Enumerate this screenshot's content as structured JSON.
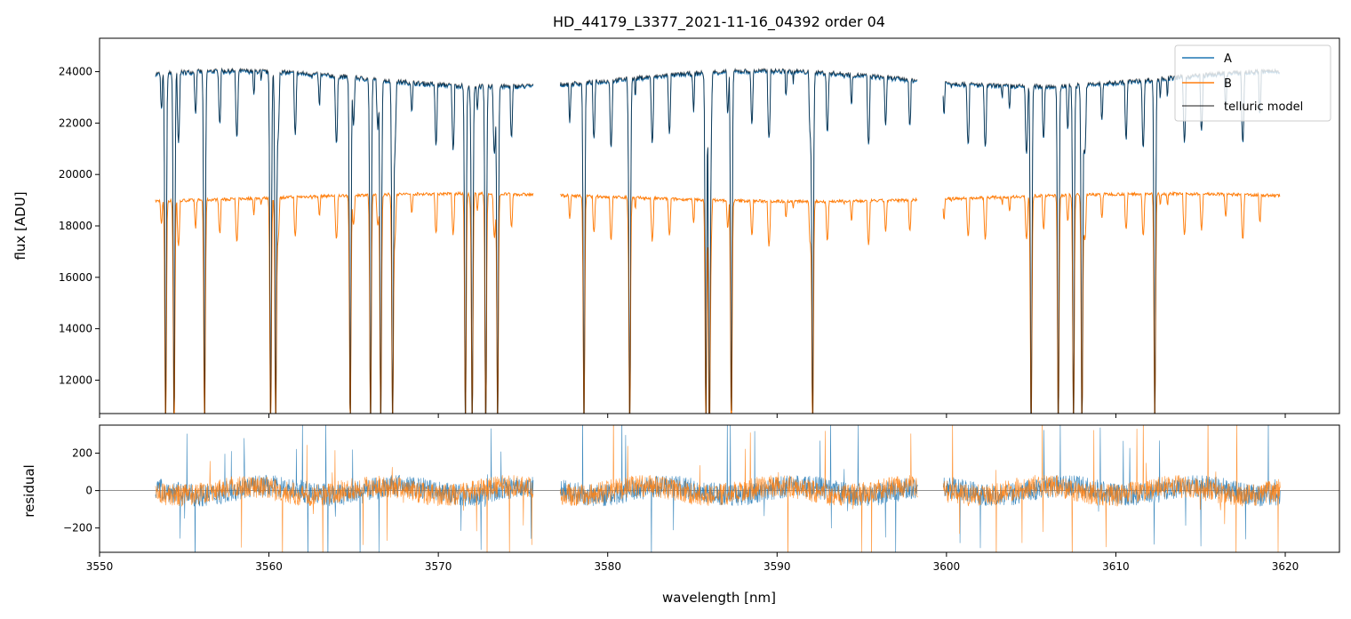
{
  "chart_data": [
    {
      "type": "line",
      "title": "HD_44179_L3377_2021-11-16_04392  order 04",
      "ylabel": "flux [ADU]",
      "xlim": [
        3550.0,
        3623.2
      ],
      "ylim": [
        10700,
        25300
      ],
      "y_ticks": [
        "12000",
        "14000",
        "16000",
        "18000",
        "20000",
        "22000",
        "24000"
      ],
      "x_ticks_values": [
        3550,
        3560,
        3570,
        3580,
        3590,
        3600,
        3610,
        3620
      ],
      "segments": [
        [
          3553.3,
          3575.6
        ],
        [
          3577.2,
          3598.3
        ],
        [
          3599.8,
          3619.7
        ]
      ],
      "baseline": {
        "A": 23700,
        "B": 19100
      },
      "series": [
        {
          "name": "A",
          "color": "#1f77b4"
        },
        {
          "name": "B",
          "color": "#ff7f0e"
        },
        {
          "name": "telluric model",
          "color": "#000000"
        }
      ],
      "absorption_lines_nm": [
        3553.9,
        3554.4,
        3556.2,
        3560.1,
        3560.4,
        3564.8,
        3566.0,
        3566.6,
        3567.3,
        3571.6,
        3572.0,
        3572.8,
        3573.5,
        3578.6,
        3581.3,
        3585.8,
        3586.0,
        3587.3,
        3592.1,
        3605.0,
        3606.6,
        3607.5,
        3608.0,
        3612.3
      ],
      "legend_position": "upper right",
      "grid": false
    },
    {
      "type": "line",
      "xlabel": "wavelength [nm]",
      "ylabel": "residual",
      "xlim": [
        3550.0,
        3623.2
      ],
      "ylim": [
        -330,
        350
      ],
      "y_ticks": [
        "−200",
        "0",
        "200"
      ],
      "x_ticks": [
        "3550",
        "3560",
        "3570",
        "3580",
        "3590",
        "3600",
        "3610",
        "3620"
      ],
      "noise_amplitude": 60,
      "series": [
        {
          "name": "A",
          "color": "#1f77b4"
        },
        {
          "name": "B",
          "color": "#ff7f0e"
        }
      ],
      "zero_line": 0,
      "grid": false
    }
  ]
}
